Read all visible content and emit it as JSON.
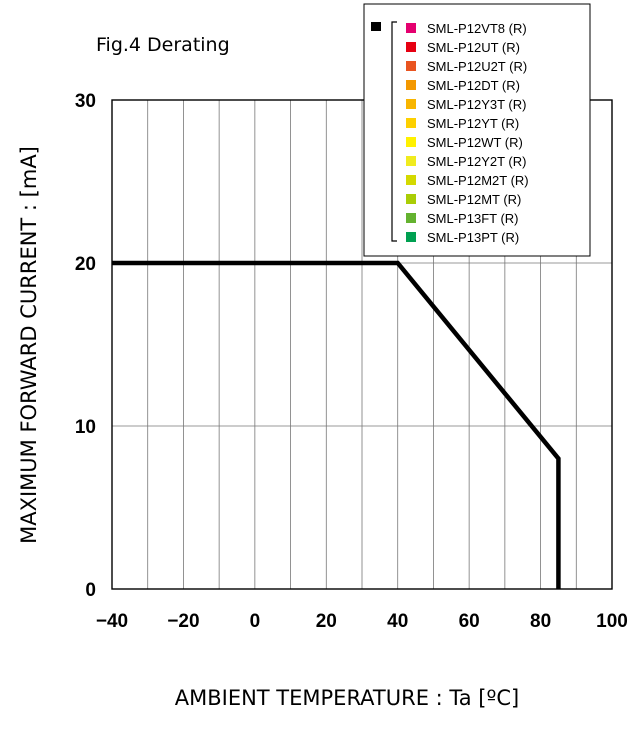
{
  "chart_data": {
    "type": "line",
    "title": "Fig.4 Derating",
    "xlabel": "AMBIENT TEMPERATURE : Ta [ºC]",
    "ylabel": "MAXIMUM FORWARD CURRENT :  [mA]",
    "xlim": [
      -40,
      100
    ],
    "ylim": [
      0,
      30
    ],
    "x_ticks": [
      "−40",
      "−20",
      "0",
      "20",
      "40",
      "60",
      "80",
      "100"
    ],
    "x_tick_values": [
      -40,
      -20,
      0,
      20,
      40,
      60,
      80,
      100
    ],
    "y_ticks": [
      "0",
      "10",
      "20",
      "30"
    ],
    "y_tick_values": [
      0,
      10,
      20,
      30
    ],
    "grid": true,
    "legend_position": "top-right",
    "series": [
      {
        "color": "#000000",
        "points": [
          {
            "x": -40,
            "y": 20
          },
          {
            "x": 40,
            "y": 20
          },
          {
            "x": 85,
            "y": 8
          },
          {
            "x": 85,
            "y": 0
          }
        ]
      }
    ],
    "legend_entries": [
      {
        "label": "SML-P12VT8 (R)",
        "color": "#e4006f"
      },
      {
        "label": "SML-P12UT (R)",
        "color": "#e60012"
      },
      {
        "label": "SML-P12U2T (R)",
        "color": "#e95420"
      },
      {
        "label": "SML-P12DT (R)",
        "color": "#f39800"
      },
      {
        "label": "SML-P12Y3T (R)",
        "color": "#f8b500"
      },
      {
        "label": "SML-P12YT (R)",
        "color": "#fdd000"
      },
      {
        "label": "SML-P12WT (R)",
        "color": "#fff100"
      },
      {
        "label": "SML-P12Y2T (R)",
        "color": "#f0eb1e"
      },
      {
        "label": "SML-P12M2T (R)",
        "color": "#d4d900"
      },
      {
        "label": "SML-P12MT (R)",
        "color": "#aacd06"
      },
      {
        "label": "SML-P13FT (R)",
        "color": "#64b22f"
      },
      {
        "label": "SML-P13PT (R)",
        "color": "#00a051"
      }
    ]
  }
}
